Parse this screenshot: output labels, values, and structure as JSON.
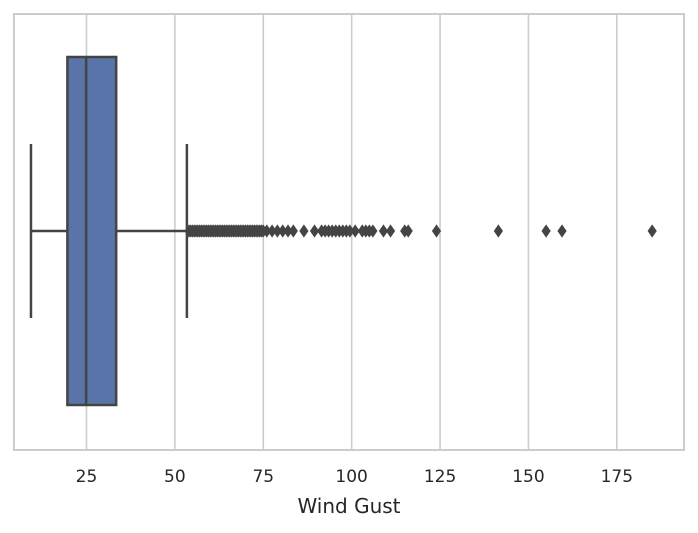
{
  "chart_data": {
    "type": "box",
    "orientation": "horizontal",
    "title": "",
    "xlabel": "Wind Gust",
    "ylabel": "",
    "xlim": [
      4.5,
      194
    ],
    "xticks": [
      25,
      50,
      75,
      100,
      125,
      150,
      175
    ],
    "grid": true,
    "box": {
      "whisker_low": 9.3,
      "q1": 19.6,
      "median": 24.9,
      "q3": 33.4,
      "whisker_high": 53.4
    },
    "outliers": [
      54,
      54.5,
      55,
      55.5,
      56,
      56.5,
      57,
      57.5,
      58,
      58.5,
      59,
      59.5,
      60,
      60.5,
      61,
      61.5,
      62,
      62.5,
      63,
      63.5,
      64,
      64.5,
      65,
      65.5,
      66,
      66.5,
      67,
      67.5,
      68,
      68.5,
      69,
      69.5,
      70,
      70.5,
      71,
      71.5,
      72,
      72.5,
      73,
      73.5,
      74,
      74.5,
      75,
      76,
      77.5,
      79,
      80.5,
      82,
      83.5,
      86.5,
      89.5,
      91.5,
      92.5,
      93.5,
      94.5,
      95.5,
      96.5,
      97.5,
      98.5,
      99.5,
      101,
      103,
      104,
      105,
      106,
      109,
      111,
      115,
      116,
      124,
      141.5,
      155,
      159.5,
      185
    ],
    "colors": {
      "box_fill": "#5874a8",
      "line": "#444444",
      "grid": "#cccccc",
      "spine": "#cccccc"
    }
  }
}
